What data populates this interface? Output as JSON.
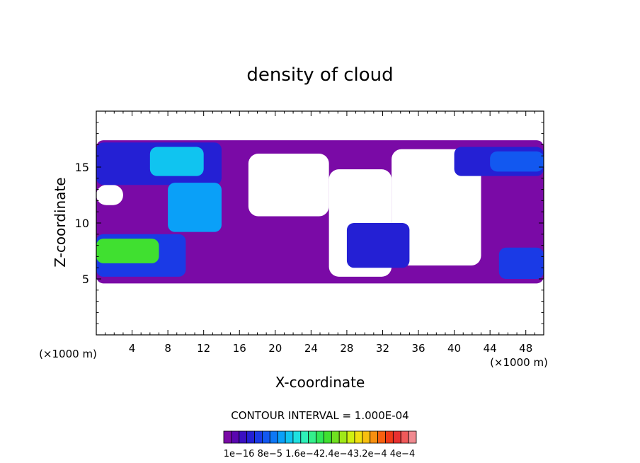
{
  "chart_data": {
    "type": "heatmap",
    "title": "density of cloud",
    "xlabel": "X-coordinate",
    "ylabel": "Z-coordinate",
    "x_unit_left": "(×1000 m)",
    "x_unit_right": "(×1000 m)",
    "xlim": [
      0,
      50
    ],
    "ylim": [
      0,
      20
    ],
    "x_ticks": [
      4,
      8,
      12,
      16,
      20,
      24,
      28,
      32,
      36,
      40,
      44,
      48
    ],
    "y_ticks": [
      5,
      10,
      15
    ],
    "contour_interval_text": "CONTOUR INTERVAL = 1.000E-04",
    "colorbar": {
      "colors": [
        "#7a0aa6",
        "#5a07b0",
        "#3a10c2",
        "#2420d4",
        "#1a3ae6",
        "#1258f0",
        "#0e78f6",
        "#0aa0f8",
        "#10c4f0",
        "#1ee0e0",
        "#2ef0b8",
        "#34f08c",
        "#30e858",
        "#40e030",
        "#70e020",
        "#a0e818",
        "#d0f010",
        "#f0e010",
        "#f8c010",
        "#f89010",
        "#f86010",
        "#f03a18",
        "#e83030",
        "#f05a5a",
        "#f08a90"
      ],
      "tick_labels": [
        "1e−16",
        "8e−5",
        "1.6e−4",
        "2.4e−4",
        "3.2e−4",
        "4e−4"
      ],
      "tick_text": "1e−16 8e−5 1.6e−42.4e−43.2e−4 4e−4"
    },
    "regions": [
      {
        "x": [
          0,
          50
        ],
        "z": [
          4.6,
          17.4
        ],
        "level": 0
      },
      {
        "x": [
          17,
          26
        ],
        "z": [
          10.6,
          16.2
        ],
        "level": -1
      },
      {
        "x": [
          26,
          33
        ],
        "z": [
          5.2,
          14.8
        ],
        "level": -1
      },
      {
        "x": [
          33,
          43
        ],
        "z": [
          6.2,
          16.6
        ],
        "level": -1
      },
      {
        "x": [
          0,
          3
        ],
        "z": [
          11.6,
          13.4
        ],
        "level": -1
      },
      {
        "x": [
          0,
          14
        ],
        "z": [
          13.4,
          17.2
        ],
        "level": 3
      },
      {
        "x": [
          6,
          12
        ],
        "z": [
          14.2,
          16.8
        ],
        "level": 8
      },
      {
        "x": [
          8,
          14
        ],
        "z": [
          9.2,
          13.6
        ],
        "level": 7
      },
      {
        "x": [
          0,
          10
        ],
        "z": [
          5.2,
          9.0
        ],
        "level": 4
      },
      {
        "x": [
          0,
          7
        ],
        "z": [
          6.4,
          8.6
        ],
        "level": 13
      },
      {
        "x": [
          28,
          35
        ],
        "z": [
          6.0,
          10.0
        ],
        "level": 3
      },
      {
        "x": [
          40,
          50
        ],
        "z": [
          14.2,
          16.8
        ],
        "level": 3
      },
      {
        "x": [
          44,
          50
        ],
        "z": [
          14.6,
          16.4
        ],
        "level": 5
      },
      {
        "x": [
          45,
          50
        ],
        "z": [
          5.0,
          7.8
        ],
        "level": 4
      }
    ]
  }
}
